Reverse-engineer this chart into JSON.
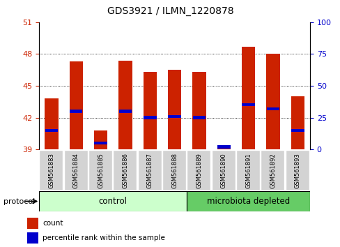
{
  "title": "GDS3921 / ILMN_1220878",
  "samples": [
    "GSM561883",
    "GSM561884",
    "GSM561885",
    "GSM561886",
    "GSM561887",
    "GSM561888",
    "GSM561889",
    "GSM561890",
    "GSM561891",
    "GSM561892",
    "GSM561893"
  ],
  "count_values": [
    43.8,
    47.3,
    40.8,
    47.4,
    46.3,
    46.5,
    46.3,
    39.3,
    48.7,
    48.0,
    44.0
  ],
  "percentile_values": [
    15,
    30,
    5,
    30,
    25,
    26,
    25,
    2,
    35,
    32,
    15
  ],
  "bar_bottom": 39.0,
  "ylim_left": [
    39,
    51
  ],
  "ylim_right": [
    0,
    100
  ],
  "yticks_left": [
    39,
    42,
    45,
    48,
    51
  ],
  "yticks_right": [
    0,
    25,
    50,
    75,
    100
  ],
  "grid_values": [
    42,
    45,
    48
  ],
  "control_n": 6,
  "micro_n": 5,
  "control_color": "#ccffcc",
  "micro_color": "#66cc66",
  "control_label": "control",
  "micro_label": "microbiota depleted",
  "bar_color": "#cc2200",
  "percentile_color": "#0000cc",
  "bar_width": 0.55,
  "ylabel_left_color": "#cc2200",
  "ylabel_right_color": "#0000cc",
  "legend_items": [
    {
      "label": "count",
      "color": "#cc2200"
    },
    {
      "label": "percentile rank within the sample",
      "color": "#0000cc"
    }
  ],
  "protocol_label": "protocol"
}
